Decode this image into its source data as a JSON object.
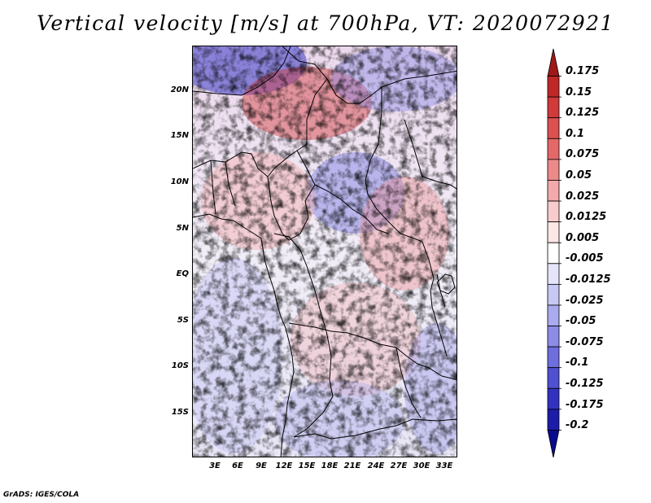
{
  "title": "Vertical velocity [m/s] at 700hPa, VT: 2020072921",
  "latitude_labels": [
    "20N",
    "15N",
    "10N",
    "5N",
    "EQ",
    "5S",
    "10S",
    "15S"
  ],
  "longitude_labels": [
    "3E",
    "6E",
    "9E",
    "12E",
    "15E",
    "18E",
    "21E",
    "24E",
    "27E",
    "30E",
    "33E"
  ],
  "colorbar": {
    "labels": [
      "0.175",
      "0.15",
      "0.125",
      "0.1",
      "0.075",
      "0.05",
      "0.025",
      "0.0125",
      "0.005",
      "-0.005",
      "-0.0125",
      "-0.025",
      "-0.05",
      "-0.075",
      "-0.1",
      "-0.125",
      "-0.175",
      "-0.2"
    ],
    "colors": [
      "#a01818",
      "#c02828",
      "#d03a3a",
      "#dc5050",
      "#e46868",
      "#ec8a8a",
      "#f4aaaa",
      "#f8cccc",
      "#fce6e6",
      "#ffffff",
      "#e4e4fa",
      "#c8c8f4",
      "#aaaaee",
      "#8c8ce6",
      "#6e6ede",
      "#5050d2",
      "#3232c0",
      "#1c1ca8",
      "#0a0a90"
    ]
  },
  "credit": "GrADS: IGES/COLA"
}
